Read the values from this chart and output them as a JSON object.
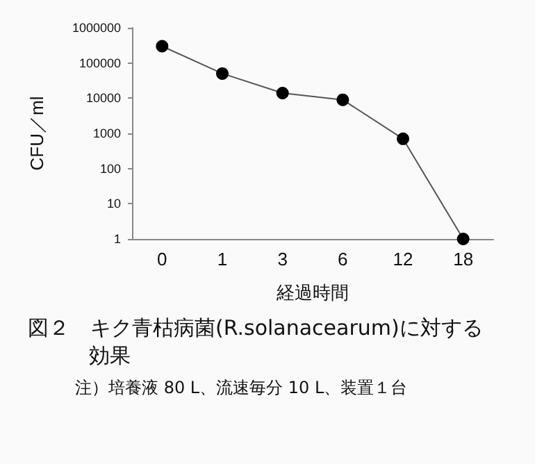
{
  "chart_data": {
    "type": "line",
    "title": "図２　キク青枯病菌(R.solanacearum)に対する効果",
    "xlabel": "経過時間",
    "ylabel": "CFU／ml",
    "annotations": [
      "注）培養液 80 L、流速毎分 10 L、装置１台"
    ],
    "categories": [
      "0",
      "1",
      "3",
      "6",
      "12",
      "18"
    ],
    "series": [
      {
        "color": "#000000",
        "values": [
          300000,
          50000,
          14000,
          9000,
          700,
          1
        ]
      }
    ],
    "log": "y",
    "ylim": [
      1,
      1000000
    ],
    "yticks": [
      1,
      10,
      100,
      1000,
      10000,
      100000,
      1000000
    ],
    "grid": false,
    "marker": "circle",
    "line_style": "solid"
  }
}
